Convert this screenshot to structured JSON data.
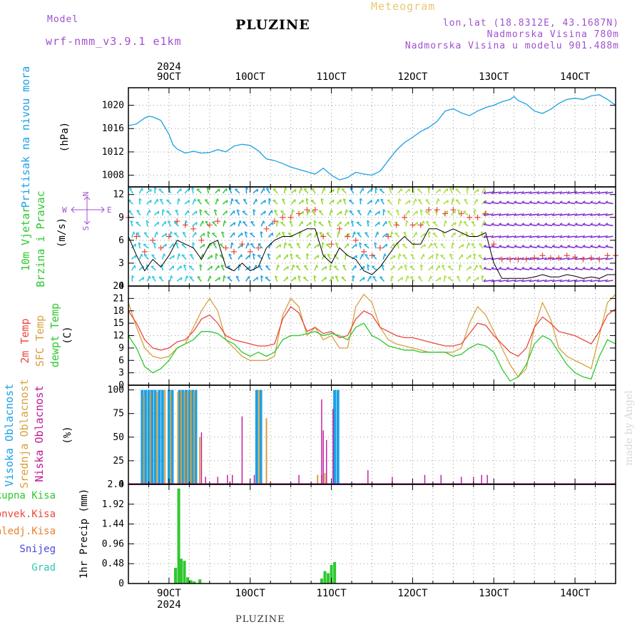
{
  "header": {
    "model_label": "Model",
    "model_name": "wrf-nmm_v3.9.1 e1km",
    "title": "PLUZINE",
    "meteogram": "Meteogram",
    "lonlat": "lon,lat (18.8312E, 43.1687N)",
    "altitude": "Nadmorska Visina 780m",
    "model_altitude": "Nadmorska Visina u modelu 901.488m",
    "footer": "PLUZINE",
    "credit": "made by Angel",
    "year": "2024"
  },
  "colors": {
    "pressure": "#1aa0e6",
    "temp2m": "#e8483c",
    "sfc_temp": "#d8a040",
    "dewpoint": "#2ec82e",
    "high_cloud": "#1aa0e6",
    "mid_cloud": "#d8a040",
    "low_cloud": "#c0169a",
    "precip_total": "#2ec82e",
    "precip_conv": "#e8483c",
    "precip_frozen": "#e8802a",
    "snow": "#4848e0",
    "graupel": "#2ec8b4",
    "header_purple": "#a050d0",
    "header_gold": "#e8c870"
  },
  "chart_data": [
    {
      "type": "line",
      "panel": "pressure",
      "ylabel_color_text": "Pritisak na nivou mora",
      "unit": "(hPa)",
      "ylim": [
        1006,
        1023
      ],
      "yticks": [
        "1008",
        "1012",
        "1016",
        "1020"
      ],
      "grid": true,
      "x_day_ticks": [
        "9OCT",
        "10OCT",
        "11OCT",
        "12OCT",
        "13OCT",
        "14OCT"
      ],
      "x": [
        8.5,
        8.6,
        8.7,
        8.75,
        8.8,
        8.9,
        9.0,
        9.05,
        9.1,
        9.2,
        9.3,
        9.4,
        9.5,
        9.6,
        9.7,
        9.8,
        9.9,
        10.0,
        10.1,
        10.2,
        10.3,
        10.4,
        10.5,
        10.6,
        10.7,
        10.8,
        10.9,
        11.0,
        11.1,
        11.2,
        11.3,
        11.4,
        11.5,
        11.6,
        11.7,
        11.8,
        11.9,
        12.0,
        12.1,
        12.2,
        12.3,
        12.4,
        12.5,
        12.6,
        12.7,
        12.8,
        12.9,
        13.0,
        13.1,
        13.2,
        13.25,
        13.3,
        13.4,
        13.5,
        13.6,
        13.7,
        13.8,
        13.9,
        14.0,
        14.1,
        14.2,
        14.3,
        14.4,
        14.5
      ],
      "series": [
        {
          "values": [
            1016.5,
            1016.8,
            1017.8,
            1018.1,
            1018.0,
            1017.4,
            1015.0,
            1013.2,
            1012.5,
            1011.8,
            1012.1,
            1011.8,
            1011.9,
            1012.4,
            1012.0,
            1013.0,
            1013.3,
            1013.1,
            1012.2,
            1010.8,
            1010.5,
            1010.0,
            1009.4,
            1009.0,
            1008.6,
            1008.2,
            1009.2,
            1008.0,
            1007.2,
            1007.6,
            1008.5,
            1008.2,
            1008.0,
            1008.7,
            1010.5,
            1012.3,
            1013.6,
            1014.5,
            1015.5,
            1016.2,
            1017.2,
            1019.0,
            1019.4,
            1018.7,
            1018.2,
            1019.0,
            1019.6,
            1020.0,
            1020.6,
            1021.0,
            1021.5,
            1020.8,
            1020.2,
            1019.0,
            1018.6,
            1019.3,
            1020.3,
            1021.0,
            1021.2,
            1021.0,
            1021.6,
            1021.8,
            1021.0,
            1020.0
          ]
        }
      ]
    },
    {
      "type": "line",
      "panel": "wind",
      "ylabel_color_text_1": "10m Vjetar",
      "ylabel_color_text_2": "Brzina i Pravac",
      "unit": "(m/s)",
      "compass": {
        "north": "N",
        "west": "W",
        "east": "E",
        "south": "S"
      },
      "ylim": [
        0,
        13
      ],
      "yticks": [
        "0",
        "3",
        "6",
        "9",
        "12"
      ],
      "grid": true,
      "x": [
        8.5,
        8.6,
        8.7,
        8.8,
        8.9,
        9.0,
        9.1,
        9.2,
        9.3,
        9.4,
        9.5,
        9.6,
        9.7,
        9.8,
        9.9,
        10.0,
        10.1,
        10.2,
        10.3,
        10.4,
        10.5,
        10.6,
        10.7,
        10.8,
        10.9,
        11.0,
        11.1,
        11.2,
        11.3,
        11.4,
        11.5,
        11.6,
        11.7,
        11.8,
        11.9,
        12.0,
        12.1,
        12.2,
        12.3,
        12.4,
        12.5,
        12.6,
        12.7,
        12.8,
        12.9,
        13.0,
        13.1,
        13.2,
        13.3,
        13.4,
        13.5,
        13.6,
        13.7,
        13.8,
        13.9,
        14.0,
        14.1,
        14.2,
        14.3,
        14.4,
        14.5
      ],
      "series": [
        {
          "values": [
            6.5,
            4.0,
            2.0,
            3.5,
            2.5,
            4.0,
            6.0,
            5.5,
            5.0,
            3.5,
            5.5,
            6.0,
            2.5,
            2.0,
            3.0,
            2.0,
            2.5,
            5.0,
            6.0,
            6.5,
            6.5,
            7.0,
            7.5,
            7.5,
            4.0,
            3.0,
            5.0,
            4.0,
            3.5,
            2.0,
            1.5,
            2.5,
            4.0,
            5.5,
            6.5,
            5.5,
            5.5,
            7.5,
            7.5,
            7.0,
            7.5,
            7.0,
            6.5,
            6.5,
            7.0,
            3.0,
            1.0,
            1.0,
            1.0,
            1.0,
            1.2,
            1.5,
            1.2,
            1.2,
            1.5,
            1.3,
            1.0,
            1.2,
            1.0,
            1.5,
            1.5
          ]
        }
      ],
      "arrow_colors_by_period": [
        {
          "x": [
            8.5,
            9.3
          ],
          "color": "#2ec8e0"
        },
        {
          "x": [
            9.3,
            9.7
          ],
          "color": "#40c840"
        },
        {
          "x": [
            9.7,
            10.3
          ],
          "color": "#20a0e0"
        },
        {
          "x": [
            10.3,
            11.2
          ],
          "color": "#90d830"
        },
        {
          "x": [
            11.2,
            11.7
          ],
          "color": "#20b0e0"
        },
        {
          "x": [
            11.7,
            12.9
          ],
          "color": "#a8e040"
        },
        {
          "x": [
            12.9,
            14.5
          ],
          "color": "#8030d0"
        }
      ]
    },
    {
      "type": "line",
      "panel": "temperature",
      "ylabel_color_text_1": "2m Temp",
      "ylabel_color_text_2": "SFC Temp",
      "ylabel_color_text_3": "dewpt Temp",
      "unit": "(C)",
      "ylim": [
        0,
        24
      ],
      "yticks": [
        "0",
        "3",
        "6",
        "9",
        "12",
        "15",
        "18",
        "21",
        "24"
      ],
      "grid": true,
      "x": [
        8.5,
        8.6,
        8.7,
        8.8,
        8.9,
        9.0,
        9.1,
        9.2,
        9.3,
        9.4,
        9.5,
        9.6,
        9.7,
        9.8,
        9.9,
        10.0,
        10.1,
        10.2,
        10.3,
        10.4,
        10.5,
        10.6,
        10.7,
        10.8,
        10.9,
        11.0,
        11.1,
        11.2,
        11.3,
        11.4,
        11.5,
        11.6,
        11.7,
        11.8,
        11.9,
        12.0,
        12.1,
        12.2,
        12.3,
        12.4,
        12.5,
        12.6,
        12.7,
        12.8,
        12.9,
        13.0,
        13.1,
        13.2,
        13.3,
        13.4,
        13.5,
        13.6,
        13.7,
        13.8,
        13.9,
        14.0,
        14.1,
        14.2,
        14.3,
        14.4,
        14.5
      ],
      "series": [
        {
          "name": "2m Temp",
          "values": [
            18.0,
            15.0,
            11.0,
            9.0,
            8.5,
            9.0,
            10.5,
            11.0,
            13.0,
            16.0,
            17.0,
            15.0,
            12.0,
            11.0,
            10.5,
            10.0,
            9.5,
            9.5,
            10.0,
            16.0,
            19.0,
            17.5,
            13.0,
            14.0,
            12.5,
            13.0,
            11.5,
            12.0,
            16.0,
            18.0,
            17.0,
            14.0,
            13.0,
            12.0,
            11.5,
            11.5,
            11.0,
            10.5,
            10.0,
            9.5,
            9.5,
            10.0,
            12.5,
            15.0,
            14.5,
            12.0,
            10.0,
            8.0,
            7.0,
            9.0,
            14.0,
            16.5,
            15.0,
            13.0,
            12.5,
            12.0,
            11.0,
            10.0,
            13.0,
            17.0,
            18.5
          ]
        },
        {
          "name": "SFC Temp",
          "values": [
            20.0,
            14.0,
            9.0,
            7.0,
            6.5,
            7.0,
            9.0,
            10.0,
            14.0,
            18.0,
            21.0,
            18.0,
            11.0,
            9.0,
            7.0,
            6.0,
            6.0,
            6.0,
            7.0,
            17.0,
            21.0,
            19.0,
            12.0,
            14.0,
            11.0,
            12.0,
            9.0,
            9.0,
            19.0,
            22.0,
            20.0,
            14.0,
            11.0,
            10.0,
            9.5,
            9.0,
            8.5,
            8.0,
            8.0,
            8.0,
            8.0,
            9.0,
            15.0,
            19.0,
            17.0,
            13.0,
            9.0,
            5.0,
            2.0,
            4.0,
            14.0,
            20.0,
            16.0,
            9.0,
            7.0,
            6.0,
            5.0,
            4.0,
            12.0,
            20.0,
            22.0
          ]
        },
        {
          "name": "dewpt Temp",
          "values": [
            12.0,
            9.0,
            4.5,
            3.0,
            4.0,
            6.0,
            9.0,
            10.0,
            11.0,
            13.0,
            13.0,
            12.5,
            11.0,
            10.0,
            8.0,
            7.0,
            8.0,
            7.0,
            8.0,
            11.0,
            12.0,
            12.0,
            12.5,
            13.0,
            12.0,
            12.5,
            12.0,
            11.0,
            14.0,
            15.0,
            12.0,
            11.0,
            9.5,
            9.0,
            8.5,
            8.5,
            8.0,
            8.0,
            8.0,
            8.0,
            7.0,
            7.5,
            9.0,
            10.0,
            9.5,
            8.0,
            4.0,
            1.0,
            2.0,
            5.0,
            10.0,
            12.0,
            11.0,
            8.0,
            5.0,
            3.0,
            2.0,
            1.5,
            7.0,
            11.0,
            10.0
          ]
        }
      ]
    },
    {
      "type": "bar",
      "panel": "clouds",
      "ylabel_color_text_1": "Visoka Oblacnost",
      "ylabel_color_text_2": "Srednja Oblacnost",
      "ylabel_color_text_3": "Niska Oblacnost",
      "unit": "(%)",
      "ylim": [
        0,
        105
      ],
      "yticks": [
        "0",
        "25",
        "50",
        "75",
        "100"
      ],
      "grid": true,
      "series": [
        {
          "name": "Visoka Oblacnost",
          "x": [
            8.67,
            8.71,
            8.75,
            8.79,
            8.83,
            8.88,
            8.92,
            9.0,
            9.04,
            9.13,
            9.17,
            9.21,
            9.25,
            9.29,
            9.33,
            10.08,
            10.13,
            11.04,
            11.08
          ],
          "values": [
            100,
            100,
            100,
            100,
            100,
            100,
            100,
            100,
            100,
            100,
            100,
            100,
            100,
            100,
            100,
            100,
            100,
            100,
            100
          ]
        },
        {
          "name": "Srednja Oblacnost",
          "x": [
            8.69,
            8.77,
            8.85,
            8.95,
            9.02,
            9.11,
            9.15,
            9.19,
            9.23,
            9.27,
            9.31,
            9.38,
            10.11,
            10.2,
            10.83,
            10.88,
            10.92
          ],
          "values": [
            95,
            98,
            98,
            100,
            98,
            98,
            100,
            98,
            98,
            100,
            98,
            50,
            100,
            70,
            10,
            10,
            12
          ]
        },
        {
          "name": "Niska Oblacnost",
          "x": [
            9.4,
            9.45,
            9.6,
            9.72,
            9.78,
            9.9,
            10.05,
            10.6,
            10.88,
            10.9,
            10.94,
            11.02,
            11.45,
            11.75,
            12.15,
            12.35,
            12.6,
            12.75,
            12.85,
            12.92
          ],
          "values": [
            55,
            8,
            8,
            10,
            10,
            72,
            10,
            10,
            90,
            57,
            47,
            80,
            15,
            8,
            10,
            10,
            8,
            8,
            10,
            10
          ]
        }
      ]
    },
    {
      "type": "bar",
      "panel": "precip",
      "ylabel_color_text_1": "Ukupna Kisa",
      "ylabel_color_text_2": "Konvek.Kisa",
      "ylabel_color_text_3": "Zaledj.Kisa",
      "ylabel_color_text_4": "Snijeg",
      "ylabel_color_text_5": "Grad",
      "unit": "1hr Precip (mm)",
      "ylim": [
        0,
        2.4
      ],
      "yticks": [
        "0",
        "0.48",
        "0.96",
        "1.44",
        "1.92",
        "2.4"
      ],
      "grid": true,
      "series": [
        {
          "name": "Ukupna Kisa",
          "x": [
            9.08,
            9.12,
            9.15,
            9.19,
            9.23,
            9.27,
            9.31,
            9.38,
            10.88,
            10.92,
            10.96,
            11.0,
            11.04
          ],
          "values": [
            0.38,
            2.3,
            0.6,
            0.55,
            0.15,
            0.08,
            0.05,
            0.1,
            0.12,
            0.3,
            0.25,
            0.45,
            0.52
          ]
        }
      ]
    }
  ]
}
